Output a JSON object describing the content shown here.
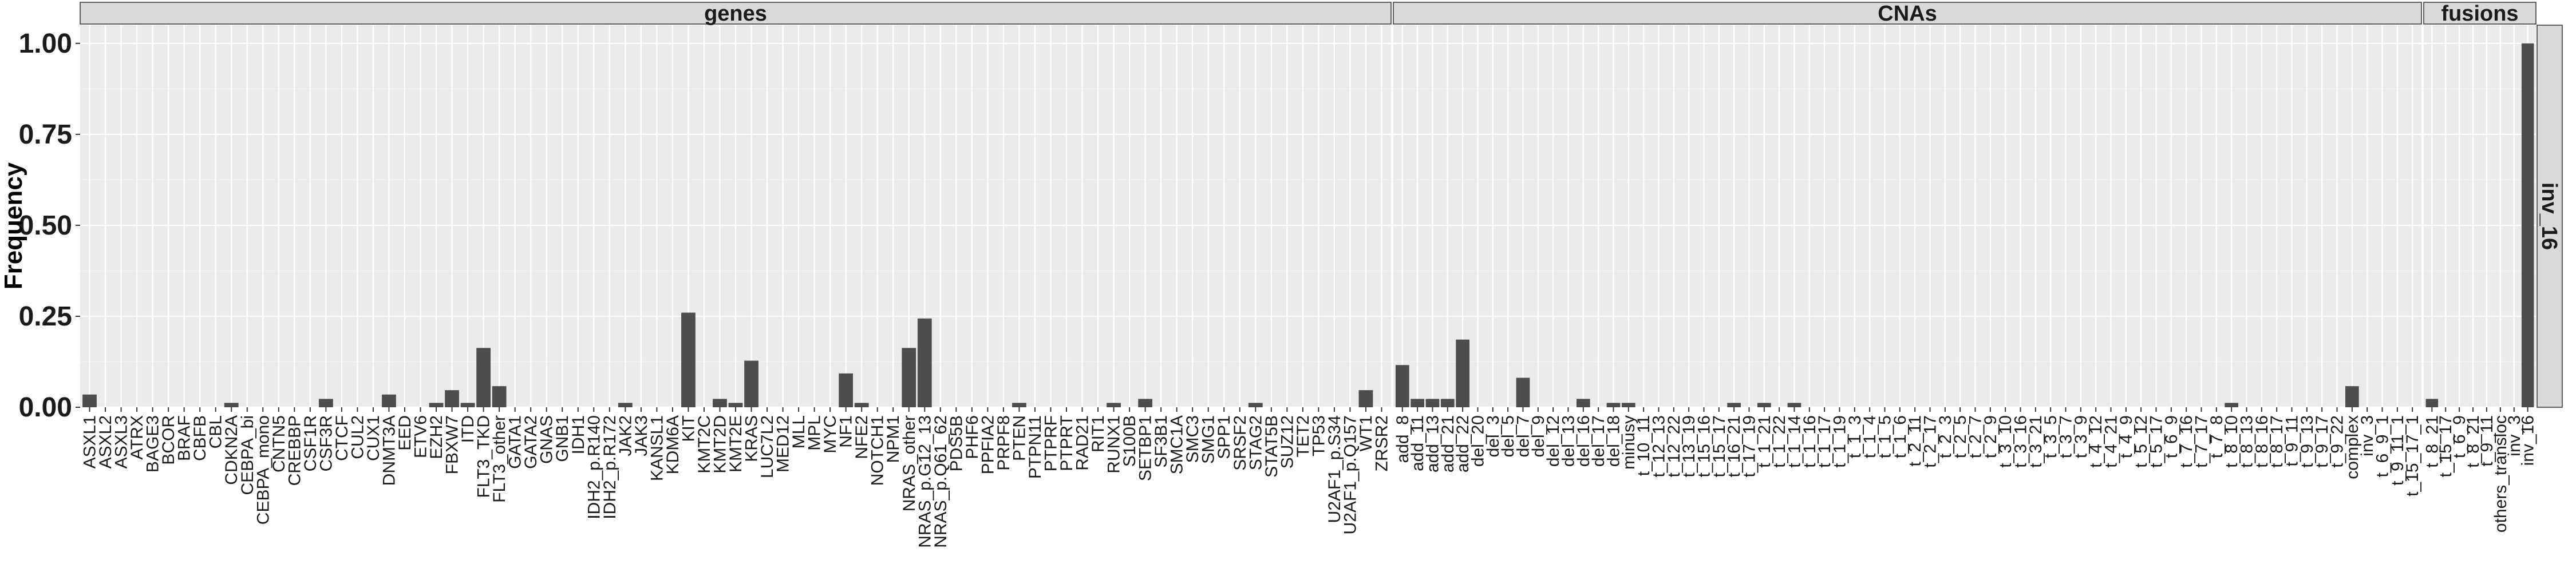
{
  "chart_data": {
    "type": "bar",
    "ylabel": "Frequency",
    "ylim": [
      0,
      1.05
    ],
    "yticks": [
      "0.00",
      "0.25",
      "0.50",
      "0.75",
      "1.00"
    ],
    "ytick_values": [
      0,
      0.25,
      0.5,
      0.75,
      1.0
    ],
    "grid": true,
    "row_strip": "inv_16",
    "colors": {
      "bar": "#4d4d4d",
      "panel": "#ebebeb",
      "strip": "#d9d9d9"
    },
    "facets": [
      {
        "name": "genes",
        "categories": [
          "ASXL1",
          "ASXL2",
          "ASXL3",
          "ATRX",
          "BAGE3",
          "BCOR",
          "BRAF",
          "CBFB",
          "CBL",
          "CDKN2A",
          "CEBPA_bi",
          "CEBPA_mono",
          "CNTN5",
          "CREBBP",
          "CSF1R",
          "CSF3R",
          "CTCF",
          "CUL2",
          "CUX1",
          "DNMT3A",
          "EED",
          "ETV6",
          "EZH2",
          "FBXW7",
          "ITD",
          "FLT3_TKD",
          "FLT3_other",
          "GATA1",
          "GATA2",
          "GNAS",
          "GNB1",
          "IDH1",
          "IDH2_p.R140",
          "IDH2_p.R172",
          "JAK2",
          "JAK3",
          "KANSL1",
          "KDM6A",
          "KIT",
          "KMT2C",
          "KMT2D",
          "KMT2E",
          "KRAS",
          "LUC7L2",
          "MED12",
          "MLL",
          "MPL",
          "MYC",
          "NF1",
          "NFE2",
          "NOTCH1",
          "NPM1",
          "NRAS_other",
          "NRAS_p.G12_13",
          "NRAS_p.Q61_62",
          "PDS5B",
          "PHF6",
          "PPFIA2",
          "PRPF8",
          "PTEN",
          "PTPN11",
          "PTPRF",
          "PTPRT",
          "RAD21",
          "RIT1",
          "RUNX1",
          "S100B",
          "SETBP1",
          "SF3B1",
          "SMC1A",
          "SMC3",
          "SMG1",
          "SPP1",
          "SRSF2",
          "STAG2",
          "STAT5B",
          "SUZ12",
          "TET2",
          "TP53",
          "U2AF1_p.S34",
          "U2AF1_p.Q157",
          "WT1",
          "ZRSR2"
        ],
        "values": [
          0.035,
          0,
          0,
          0,
          0,
          0,
          0,
          0,
          0,
          0.012,
          0,
          0,
          0,
          0,
          0,
          0.023,
          0,
          0,
          0,
          0.035,
          0,
          0,
          0.012,
          0.047,
          0.012,
          0.163,
          0.058,
          0,
          0,
          0,
          0,
          0,
          0,
          0,
          0.012,
          0,
          0,
          0,
          0.26,
          0,
          0.023,
          0.012,
          0.128,
          0,
          0,
          0,
          0,
          0,
          0.093,
          0.012,
          0,
          0,
          0.163,
          0.244,
          0,
          0,
          0,
          0,
          0,
          0.012,
          0,
          0,
          0,
          0,
          0,
          0.012,
          0,
          0.023,
          0,
          0,
          0,
          0,
          0,
          0,
          0.012,
          0,
          0,
          0,
          0,
          0,
          0,
          0.047,
          0
        ]
      },
      {
        "name": "CNAs",
        "categories": [
          "add_8",
          "add_11",
          "add_13",
          "add_21",
          "add_22",
          "del_20",
          "del_3",
          "del_5",
          "del_7",
          "del_9",
          "del_12",
          "del_13",
          "del_16",
          "del_17",
          "del_18",
          "minusy",
          "t_10_11",
          "t_12_13",
          "t_12_22",
          "t_13_19",
          "t_15_16",
          "t_15_17",
          "t_16_21",
          "t_17_19",
          "t_1_21",
          "t_1_22",
          "t_1_14",
          "t_1_16",
          "t_1_17",
          "t_1_19",
          "t_1_3",
          "t_1_4",
          "t_1_5",
          "t_1_6",
          "t_2_11",
          "t_2_17",
          "t_2_3",
          "t_2_5",
          "t_2_7",
          "t_2_9",
          "t_3_10",
          "t_3_16",
          "t_3_21",
          "t_3_5",
          "t_3_7",
          "t_3_9",
          "t_4_12",
          "t_4_21",
          "t_4_9",
          "t_5_12",
          "t_5_17",
          "t_6_9",
          "t_7_16",
          "t_7_17",
          "t_7_8",
          "t_8_10",
          "t_8_13",
          "t_8_16",
          "t_8_17",
          "t_9_11",
          "t_9_13",
          "t_9_17",
          "t_9_22",
          "complex",
          "inv_3",
          "t_6_9_1",
          "t_9_11_1",
          "t_15_17_1"
        ],
        "values": [
          0.116,
          0.023,
          0.023,
          0.023,
          0.186,
          0,
          0,
          0,
          0.081,
          0,
          0,
          0,
          0.023,
          0,
          0.012,
          0.012,
          0,
          0,
          0,
          0,
          0,
          0,
          0.012,
          0,
          0.012,
          0,
          0.012,
          0,
          0,
          0,
          0,
          0,
          0,
          0,
          0,
          0,
          0,
          0,
          0,
          0,
          0,
          0,
          0,
          0,
          0,
          0,
          0,
          0,
          0,
          0,
          0,
          0,
          0,
          0,
          0,
          0.012,
          0,
          0,
          0,
          0,
          0,
          0,
          0,
          0.058,
          0,
          0,
          0,
          0
        ]
      },
      {
        "name": "fusions",
        "categories": [
          "t_8_21",
          "t_15_17",
          "t_6_9",
          "t_8_21",
          "t_9_11",
          "others_transloc",
          "inv_3",
          "inv_16"
        ],
        "values": [
          0.023,
          0,
          0,
          0,
          0,
          0,
          0,
          1.0
        ]
      }
    ]
  }
}
